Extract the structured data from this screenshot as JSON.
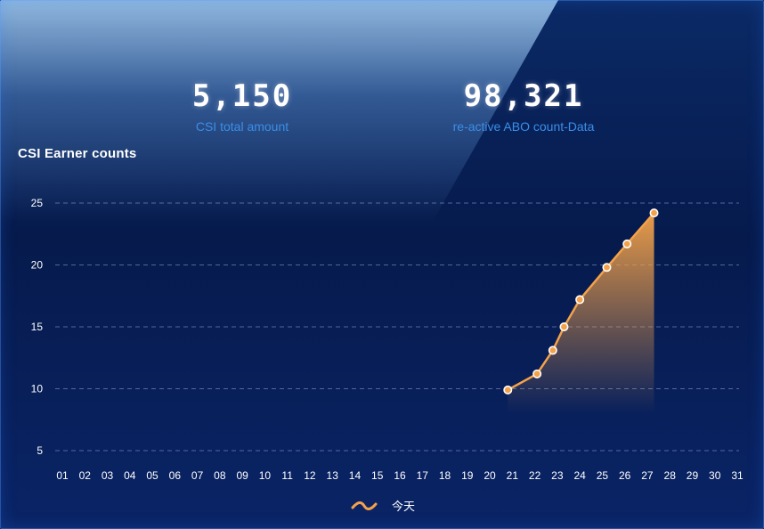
{
  "stats": {
    "csi_total": {
      "value": "5,150",
      "label": "CSI total amount"
    },
    "reactive_abo": {
      "value": "98,321",
      "label": "re-active ABO count-Data"
    }
  },
  "colors": {
    "line": "#f4a24a",
    "grid": "#8ea6d4",
    "tick": "#ffffff",
    "stat_label": "#3b8ee8"
  },
  "chart_data": {
    "type": "area",
    "title": "CSI Earner counts",
    "xlabel": "",
    "ylabel": "",
    "categories": [
      "01",
      "02",
      "03",
      "04",
      "05",
      "06",
      "07",
      "08",
      "09",
      "10",
      "11",
      "12",
      "13",
      "14",
      "15",
      "16",
      "17",
      "18",
      "19",
      "20",
      "21",
      "22",
      "23",
      "24",
      "25",
      "26",
      "27",
      "28",
      "29",
      "30",
      "31"
    ],
    "yticks": [
      5,
      10,
      15,
      20,
      25
    ],
    "ylim": [
      5,
      25
    ],
    "grid": true,
    "legend_position": "bottom-center",
    "series": [
      {
        "name": "今天",
        "points": [
          {
            "x": 20.8,
            "y": 9.9
          },
          {
            "x": 22.1,
            "y": 11.2
          },
          {
            "x": 22.8,
            "y": 13.1
          },
          {
            "x": 23.3,
            "y": 15.0
          },
          {
            "x": 24.0,
            "y": 17.2
          },
          {
            "x": 25.2,
            "y": 19.8
          },
          {
            "x": 26.1,
            "y": 21.7
          },
          {
            "x": 27.3,
            "y": 24.2
          }
        ]
      }
    ]
  }
}
